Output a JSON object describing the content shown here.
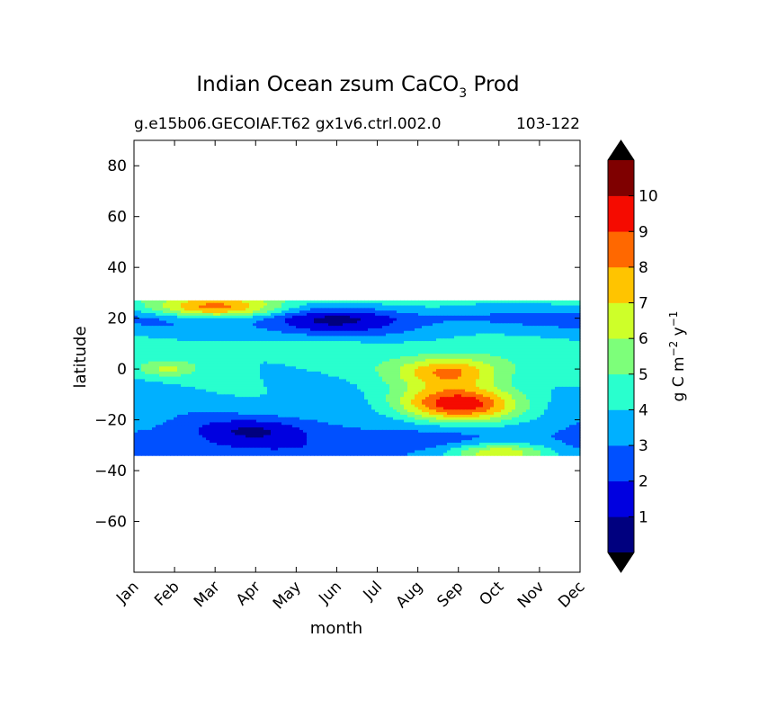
{
  "chart_data": {
    "type": "contourf",
    "title": "Indian Ocean zsum CaCO",
    "title_subscript": "3",
    "title_suffix": " Prod",
    "subtitle_left": "g.e15b06.GECOIAF.T62 gx1v6.ctrl.002.0",
    "subtitle_right": "103-122",
    "xlabel": "month",
    "ylabel": "latitude",
    "xlim": [
      0,
      11
    ],
    "ylim": [
      -80,
      90
    ],
    "x_ticks": [
      {
        "label": "Jan",
        "value": 0
      },
      {
        "label": "Feb",
        "value": 1
      },
      {
        "label": "Mar",
        "value": 2
      },
      {
        "label": "Apr",
        "value": 3
      },
      {
        "label": "May",
        "value": 4
      },
      {
        "label": "Jun",
        "value": 5
      },
      {
        "label": "Jul",
        "value": 6
      },
      {
        "label": "Aug",
        "value": 7
      },
      {
        "label": "Sep",
        "value": 8
      },
      {
        "label": "Oct",
        "value": 9
      },
      {
        "label": "Nov",
        "value": 10
      },
      {
        "label": "Dec",
        "value": 11
      }
    ],
    "y_ticks": [
      {
        "label": "80",
        "value": 80
      },
      {
        "label": "60",
        "value": 60
      },
      {
        "label": "40",
        "value": 40
      },
      {
        "label": "20",
        "value": 20
      },
      {
        "label": "0",
        "value": 0
      },
      {
        "label": "−20",
        "value": -20
      },
      {
        "label": "−40",
        "value": -40
      },
      {
        "label": "−60",
        "value": -60
      }
    ],
    "data_lat_range": [
      -34,
      27
    ],
    "levels": [
      0,
      1,
      2,
      3,
      4,
      5,
      6,
      7,
      8,
      9,
      10,
      11
    ],
    "level_colors": [
      "#00007f",
      "#0000e0",
      "#0050ff",
      "#00b0ff",
      "#29ffce",
      "#7dff7a",
      "#ceff29",
      "#ffc400",
      "#ff6800",
      "#f50b00",
      "#7f0000"
    ],
    "extend_under_color": "#000000",
    "extend_over_color": "#000000",
    "colorbar_ticks": [
      {
        "label": "1",
        "value": 1
      },
      {
        "label": "2",
        "value": 2
      },
      {
        "label": "3",
        "value": 3
      },
      {
        "label": "4",
        "value": 4
      },
      {
        "label": "5",
        "value": 5
      },
      {
        "label": "6",
        "value": 6
      },
      {
        "label": "7",
        "value": 7
      },
      {
        "label": "8",
        "value": 8
      },
      {
        "label": "9",
        "value": 9
      },
      {
        "label": "10",
        "value": 10
      }
    ],
    "colorbar_label": "g C m",
    "colorbar_label_exp1": "−2",
    "colorbar_label_mid": " y",
    "colorbar_label_exp2": "−1",
    "field_features": [
      {
        "month": 8.0,
        "lat": -14,
        "peak": 9.6,
        "dx": 1.5,
        "dy": 7
      },
      {
        "month": 7.8,
        "lat": -1,
        "peak": 8.2,
        "dx": 1.3,
        "dy": 6
      },
      {
        "month": 2.0,
        "lat": 24,
        "peak": 8.0,
        "dx": 1.6,
        "dy": 4
      },
      {
        "month": 0.8,
        "lat": 0,
        "peak": 6.0,
        "dx": 0.7,
        "dy": 3
      },
      {
        "month": 9.0,
        "lat": -33,
        "peak": 7.0,
        "dx": 1.3,
        "dy": 4
      },
      {
        "month": 3.0,
        "lat": -24,
        "peak": -1.8,
        "dx": 1.5,
        "dy": 5
      },
      {
        "month": 4.8,
        "lat": 18,
        "peak": -2.0,
        "dx": 1.6,
        "dy": 6
      }
    ],
    "field_background": [
      {
        "lat": 27,
        "value": 4.5
      },
      {
        "lat": 20,
        "value": 2.6
      },
      {
        "lat": 10,
        "value": 4.4
      },
      {
        "lat": 0,
        "value": 4.2
      },
      {
        "lat": -10,
        "value": 3.8
      },
      {
        "lat": -20,
        "value": 3.2
      },
      {
        "lat": -30,
        "value": 2.3
      },
      {
        "lat": -34,
        "value": 2.6
      }
    ]
  }
}
